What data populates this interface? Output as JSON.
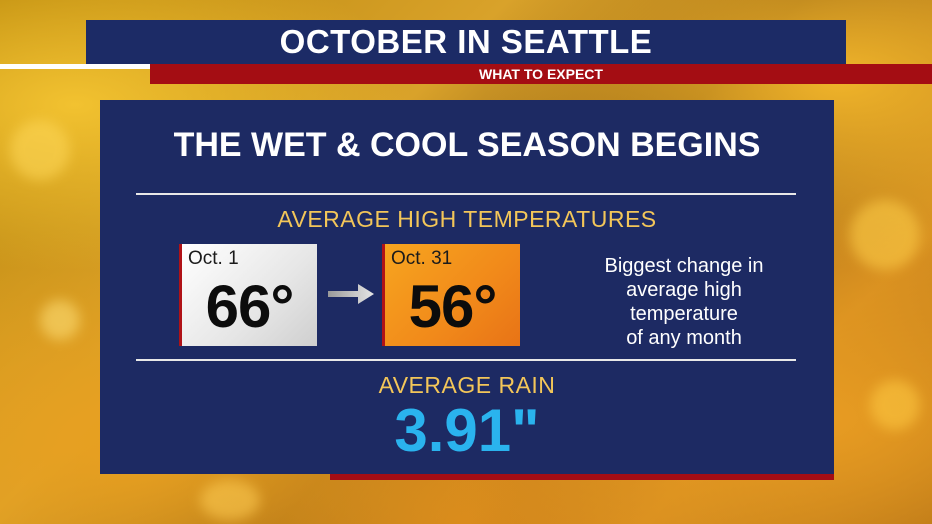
{
  "header": {
    "title": "OCTOBER IN SEATTLE",
    "subtitle": "WHAT TO EXPECT"
  },
  "panel": {
    "headline": "THE WET & COOL SEASON BEGINS",
    "high_temps": {
      "label": "AVERAGE HIGH TEMPERATURES",
      "start": {
        "date": "Oct. 1",
        "temp": "66°"
      },
      "end": {
        "date": "Oct. 31",
        "temp": "56°"
      },
      "note_lines": [
        "Biggest change in",
        "average high",
        "temperature",
        "of any month"
      ]
    },
    "rain": {
      "label": "AVERAGE RAIN",
      "value": "3.91\""
    }
  },
  "colors": {
    "navy": "#1d2a63",
    "red": "#a40d13",
    "gold": "#f3c659",
    "rain_blue": "#2ab3ee",
    "orange_card": "#f1891a"
  },
  "icons": {
    "arrow": "arrow-right-icon"
  }
}
